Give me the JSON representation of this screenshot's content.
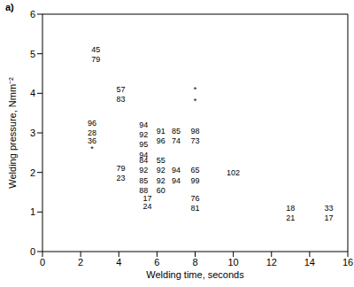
{
  "chart_data": {
    "type": "scatter",
    "title": "a)",
    "x_label": "Welding time, seconds",
    "y_label": "Welding pressure, Nmm⁻²",
    "xlim": [
      0,
      16
    ],
    "xticks": [
      0,
      2,
      4,
      6,
      8,
      10,
      12,
      14,
      16
    ],
    "ylim": [
      0,
      6
    ],
    "yticks": [
      0,
      1,
      2,
      3,
      4,
      5,
      6
    ],
    "color": "#000000",
    "marker": "text",
    "points": [
      {
        "x": 2.8,
        "y": 5.1,
        "label": "45"
      },
      {
        "x": 2.8,
        "y": 4.85,
        "label": "79"
      },
      {
        "x": 4.1,
        "y": 4.1,
        "label": "57"
      },
      {
        "x": 4.1,
        "y": 3.85,
        "label": "83"
      },
      {
        "x": 2.6,
        "y": 3.25,
        "label": "96"
      },
      {
        "x": 2.6,
        "y": 3.0,
        "label": "28"
      },
      {
        "x": 2.6,
        "y": 2.8,
        "label": "36"
      },
      {
        "x": 2.6,
        "y": 2.6,
        "label": "*"
      },
      {
        "x": 4.1,
        "y": 2.1,
        "label": "79"
      },
      {
        "x": 4.1,
        "y": 1.85,
        "label": "23"
      },
      {
        "x": 5.3,
        "y": 3.2,
        "label": "94"
      },
      {
        "x": 5.3,
        "y": 2.95,
        "label": "92"
      },
      {
        "x": 5.3,
        "y": 2.7,
        "label": "95"
      },
      {
        "x": 5.3,
        "y": 2.45,
        "label": "94"
      },
      {
        "x": 5.3,
        "y": 2.3,
        "label": "84"
      },
      {
        "x": 5.3,
        "y": 2.05,
        "label": "92"
      },
      {
        "x": 5.3,
        "y": 1.8,
        "label": "85"
      },
      {
        "x": 5.3,
        "y": 1.55,
        "label": "88"
      },
      {
        "x": 5.5,
        "y": 1.35,
        "label": "17"
      },
      {
        "x": 5.5,
        "y": 1.15,
        "label": "24"
      },
      {
        "x": 6.2,
        "y": 3.05,
        "label": "91"
      },
      {
        "x": 6.2,
        "y": 2.8,
        "label": "96"
      },
      {
        "x": 6.2,
        "y": 2.3,
        "label": "55"
      },
      {
        "x": 6.2,
        "y": 2.05,
        "label": "92"
      },
      {
        "x": 6.2,
        "y": 1.8,
        "label": "92"
      },
      {
        "x": 6.2,
        "y": 1.55,
        "label": "60"
      },
      {
        "x": 7.0,
        "y": 3.05,
        "label": "85"
      },
      {
        "x": 7.0,
        "y": 2.8,
        "label": "74"
      },
      {
        "x": 7.0,
        "y": 2.05,
        "label": "94"
      },
      {
        "x": 7.0,
        "y": 1.8,
        "label": "94"
      },
      {
        "x": 8.0,
        "y": 4.1,
        "label": "*"
      },
      {
        "x": 8.0,
        "y": 3.8,
        "label": "*"
      },
      {
        "x": 8.0,
        "y": 3.05,
        "label": "98"
      },
      {
        "x": 8.0,
        "y": 2.8,
        "label": "73"
      },
      {
        "x": 8.0,
        "y": 2.05,
        "label": "65"
      },
      {
        "x": 8.0,
        "y": 1.8,
        "label": "99"
      },
      {
        "x": 8.0,
        "y": 1.35,
        "label": "76"
      },
      {
        "x": 8.0,
        "y": 1.1,
        "label": "81"
      },
      {
        "x": 10.0,
        "y": 2.0,
        "label": "102"
      },
      {
        "x": 13.0,
        "y": 1.1,
        "label": "18"
      },
      {
        "x": 13.0,
        "y": 0.85,
        "label": "21"
      },
      {
        "x": 15.0,
        "y": 1.1,
        "label": "33"
      },
      {
        "x": 15.0,
        "y": 0.85,
        "label": "17"
      }
    ]
  }
}
